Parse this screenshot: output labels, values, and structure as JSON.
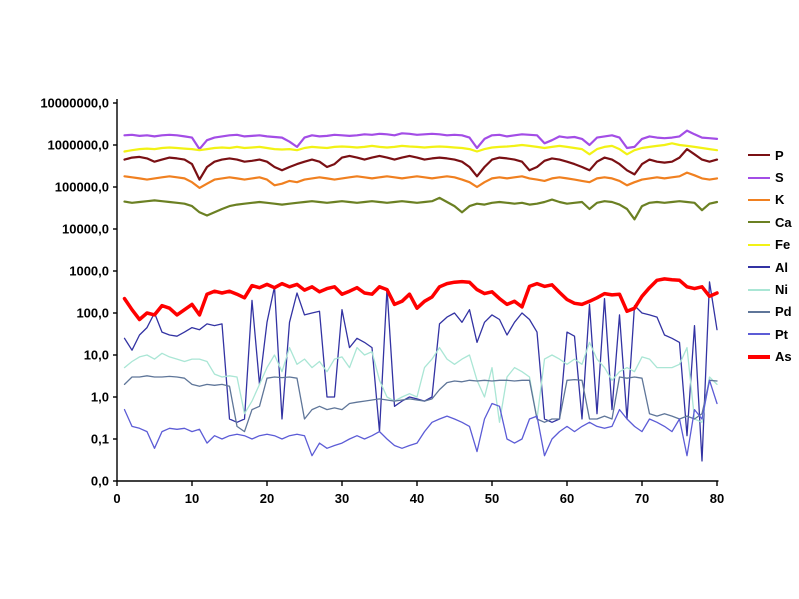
{
  "chart_data": {
    "type": "line",
    "title": "",
    "xlabel": "",
    "ylabel": "",
    "grid": false,
    "legend_position": "right",
    "background_color": "#ffffff",
    "axis_color": "#000000",
    "x_axis": {
      "min": 0,
      "max": 80,
      "tick_labels": [
        "0",
        "10",
        "20",
        "30",
        "40",
        "50",
        "60",
        "70",
        "80"
      ]
    },
    "y_axis": {
      "scale": "log",
      "top_value": 10000000,
      "bottom_value": 0.01,
      "tick_labels": [
        "10000000,0",
        "1000000,0",
        "100000,0",
        "10000,0",
        "1000,0",
        "100,0",
        "10,0",
        "1,0",
        "0,1",
        "0,0"
      ]
    },
    "x_start": 1,
    "x_step": 1,
    "series": [
      {
        "name": "P",
        "color": "#7A1014",
        "width": 2.2,
        "values": [
          450000,
          500000,
          520000,
          480000,
          400000,
          450000,
          500000,
          480000,
          450000,
          350000,
          150000,
          300000,
          400000,
          450000,
          480000,
          450000,
          400000,
          420000,
          450000,
          400000,
          300000,
          250000,
          300000,
          350000,
          400000,
          450000,
          400000,
          300000,
          350000,
          500000,
          550000,
          500000,
          450000,
          500000,
          550000,
          500000,
          450000,
          500000,
          550000,
          500000,
          450000,
          480000,
          500000,
          480000,
          450000,
          400000,
          300000,
          180000,
          300000,
          450000,
          500000,
          480000,
          450000,
          400000,
          250000,
          300000,
          420000,
          480000,
          450000,
          400000,
          350000,
          300000,
          250000,
          400000,
          500000,
          450000,
          350000,
          250000,
          200000,
          350000,
          450000,
          400000,
          380000,
          400000,
          500000,
          800000,
          600000,
          450000,
          400000,
          450000
        ]
      },
      {
        "name": "S",
        "color": "#A34DE6",
        "width": 2.2,
        "values": [
          1700000,
          1750000,
          1650000,
          1700000,
          1600000,
          1700000,
          1750000,
          1700000,
          1600000,
          1500000,
          800000,
          1300000,
          1500000,
          1600000,
          1700000,
          1750000,
          1600000,
          1650000,
          1700000,
          1600000,
          1550000,
          1500000,
          1200000,
          900000,
          1500000,
          1700000,
          1600000,
          1650000,
          1750000,
          1700000,
          1650000,
          1700000,
          1800000,
          1750000,
          1850000,
          1800000,
          1700000,
          1900000,
          1850000,
          1750000,
          1800000,
          1850000,
          1800000,
          1700000,
          1750000,
          1700000,
          1500000,
          850000,
          1400000,
          1700000,
          1750000,
          1600000,
          1700000,
          1800000,
          1750000,
          1700000,
          1100000,
          1300000,
          1600000,
          1500000,
          1550000,
          1400000,
          1000000,
          1500000,
          1600000,
          1700000,
          1500000,
          850000,
          900000,
          1400000,
          1600000,
          1500000,
          1450000,
          1500000,
          1600000,
          2200000,
          1800000,
          1500000,
          1450000,
          1400000
        ]
      },
      {
        "name": "K",
        "color": "#F08020",
        "width": 2.2,
        "values": [
          180000,
          170000,
          160000,
          150000,
          160000,
          170000,
          180000,
          170000,
          160000,
          130000,
          95000,
          120000,
          150000,
          160000,
          170000,
          160000,
          150000,
          160000,
          170000,
          150000,
          110000,
          120000,
          140000,
          130000,
          150000,
          160000,
          170000,
          160000,
          150000,
          160000,
          170000,
          180000,
          170000,
          160000,
          170000,
          180000,
          170000,
          160000,
          170000,
          180000,
          170000,
          160000,
          170000,
          180000,
          170000,
          150000,
          130000,
          100000,
          130000,
          160000,
          170000,
          160000,
          170000,
          180000,
          160000,
          150000,
          140000,
          160000,
          170000,
          160000,
          150000,
          140000,
          130000,
          160000,
          170000,
          160000,
          140000,
          110000,
          130000,
          150000,
          160000,
          170000,
          160000,
          170000,
          180000,
          220000,
          190000,
          160000,
          150000,
          160000
        ]
      },
      {
        "name": "Ca",
        "color": "#6B8023",
        "width": 2.2,
        "values": [
          45000,
          42000,
          44000,
          46000,
          48000,
          46000,
          44000,
          42000,
          40000,
          35000,
          25000,
          21000,
          25000,
          30000,
          35000,
          38000,
          40000,
          42000,
          44000,
          42000,
          40000,
          38000,
          40000,
          42000,
          44000,
          46000,
          44000,
          42000,
          44000,
          46000,
          44000,
          42000,
          44000,
          46000,
          44000,
          42000,
          44000,
          46000,
          44000,
          42000,
          44000,
          46000,
          55000,
          44000,
          35000,
          25000,
          35000,
          40000,
          38000,
          42000,
          44000,
          42000,
          40000,
          42000,
          38000,
          40000,
          44000,
          50000,
          44000,
          40000,
          42000,
          44000,
          30000,
          42000,
          46000,
          44000,
          38000,
          30000,
          17000,
          35000,
          42000,
          44000,
          42000,
          44000,
          46000,
          44000,
          42000,
          28000,
          40000,
          44000
        ]
      },
      {
        "name": "Fe",
        "color": "#F2F215",
        "width": 2.2,
        "values": [
          700000,
          750000,
          800000,
          820000,
          800000,
          850000,
          870000,
          850000,
          820000,
          800000,
          750000,
          800000,
          850000,
          870000,
          850000,
          900000,
          850000,
          870000,
          900000,
          850000,
          800000,
          780000,
          800000,
          750000,
          850000,
          900000,
          870000,
          850000,
          900000,
          920000,
          900000,
          870000,
          900000,
          950000,
          900000,
          870000,
          900000,
          950000,
          920000,
          900000,
          870000,
          900000,
          920000,
          900000,
          870000,
          850000,
          800000,
          700000,
          800000,
          870000,
          900000,
          920000,
          950000,
          1000000,
          950000,
          900000,
          850000,
          900000,
          950000,
          900000,
          850000,
          800000,
          600000,
          800000,
          900000,
          950000,
          800000,
          600000,
          750000,
          850000,
          900000,
          950000,
          1000000,
          1100000,
          1000000,
          950000,
          900000,
          850000,
          800000,
          750000
        ]
      },
      {
        "name": "Al",
        "color": "#3333A3",
        "width": 1.3,
        "values": [
          25,
          13,
          30,
          45,
          100,
          35,
          30,
          28,
          35,
          45,
          40,
          55,
          50,
          55,
          0.3,
          0.25,
          0.3,
          200,
          2,
          60,
          420,
          0.3,
          60,
          300,
          90,
          100,
          110,
          1,
          1,
          120,
          15,
          25,
          20,
          15,
          0.15,
          380,
          0.6,
          0.8,
          1,
          0.9,
          0.8,
          1,
          55,
          80,
          100,
          60,
          120,
          20,
          60,
          90,
          70,
          30,
          60,
          100,
          70,
          35,
          0.3,
          0.25,
          0.3,
          35,
          28,
          0.3,
          160,
          0.4,
          220,
          0.5,
          90,
          0.3,
          150,
          100,
          90,
          80,
          30,
          25,
          20,
          0.12,
          50,
          0.03,
          550,
          40
        ]
      },
      {
        "name": "Ni",
        "color": "#AAE6D5",
        "width": 1.3,
        "values": [
          5,
          7,
          9,
          10,
          8,
          11,
          9,
          8,
          7,
          8,
          8,
          7,
          3.5,
          3,
          3.2,
          3,
          0.4,
          0.8,
          2,
          5,
          10,
          4,
          15,
          6,
          8,
          5,
          7,
          4,
          8,
          9,
          5,
          15,
          10,
          12,
          2.5,
          1,
          0.8,
          1,
          1.2,
          1,
          5,
          8,
          15,
          8,
          6,
          8,
          10,
          2.5,
          1,
          5,
          0.25,
          3,
          5,
          4,
          3,
          0.3,
          8,
          10,
          8,
          6,
          8,
          6,
          20,
          8,
          5,
          2.5,
          4,
          5,
          4,
          9,
          8,
          5,
          5,
          5,
          6,
          15,
          0.3,
          0.25,
          3,
          2
        ]
      },
      {
        "name": "Pd",
        "color": "#5F7699",
        "width": 1.3,
        "values": [
          2,
          3,
          3,
          3.2,
          3,
          3,
          3.1,
          3,
          2.8,
          2,
          1.8,
          2,
          1.9,
          2,
          1.8,
          0.2,
          0.15,
          0.5,
          0.6,
          2.8,
          3,
          2.9,
          3,
          2.8,
          0.3,
          0.5,
          0.6,
          0.5,
          0.55,
          0.5,
          0.7,
          0.75,
          0.8,
          0.85,
          0.9,
          0.85,
          0.8,
          0.85,
          0.9,
          0.85,
          0.8,
          0.9,
          1.5,
          2.2,
          2.4,
          2.3,
          2.5,
          2.4,
          2.5,
          2.4,
          2.5,
          2.5,
          2.4,
          2.5,
          2.5,
          0.3,
          0.25,
          0.3,
          0.3,
          2.5,
          2.6,
          2.5,
          0.3,
          0.3,
          0.35,
          0.3,
          3,
          2.8,
          3,
          2.8,
          0.4,
          0.35,
          0.4,
          0.35,
          0.3,
          0.35,
          0.3,
          0.4,
          2.5,
          2.4
        ]
      },
      {
        "name": "Pt",
        "color": "#5C5CD6",
        "width": 1.3,
        "values": [
          0.5,
          0.2,
          0.18,
          0.15,
          0.06,
          0.15,
          0.18,
          0.17,
          0.18,
          0.15,
          0.17,
          0.08,
          0.12,
          0.1,
          0.12,
          0.13,
          0.12,
          0.1,
          0.12,
          0.13,
          0.12,
          0.1,
          0.12,
          0.13,
          0.12,
          0.04,
          0.08,
          0.06,
          0.07,
          0.08,
          0.1,
          0.12,
          0.1,
          0.12,
          0.15,
          0.1,
          0.07,
          0.06,
          0.07,
          0.08,
          0.15,
          0.25,
          0.3,
          0.35,
          0.3,
          0.25,
          0.2,
          0.05,
          0.3,
          0.7,
          0.6,
          0.1,
          0.08,
          0.1,
          0.3,
          0.35,
          0.04,
          0.1,
          0.15,
          0.2,
          0.15,
          0.2,
          0.25,
          0.2,
          0.18,
          0.2,
          0.5,
          0.3,
          0.2,
          0.15,
          0.3,
          0.25,
          0.2,
          0.15,
          0.3,
          0.04,
          0.5,
          0.3,
          2.5,
          0.7
        ]
      },
      {
        "name": "As",
        "color": "#FF0000",
        "width": 3.5,
        "values": [
          220,
          120,
          70,
          100,
          90,
          150,
          130,
          90,
          120,
          160,
          90,
          280,
          330,
          300,
          330,
          280,
          230,
          450,
          400,
          480,
          400,
          500,
          420,
          480,
          350,
          420,
          320,
          380,
          420,
          280,
          330,
          400,
          300,
          280,
          420,
          360,
          160,
          190,
          280,
          130,
          190,
          240,
          420,
          500,
          540,
          560,
          540,
          360,
          290,
          320,
          220,
          160,
          190,
          140,
          430,
          500,
          430,
          470,
          310,
          210,
          170,
          160,
          190,
          230,
          290,
          270,
          280,
          110,
          130,
          250,
          400,
          600,
          650,
          620,
          600,
          420,
          380,
          420,
          250,
          300
        ]
      }
    ]
  }
}
